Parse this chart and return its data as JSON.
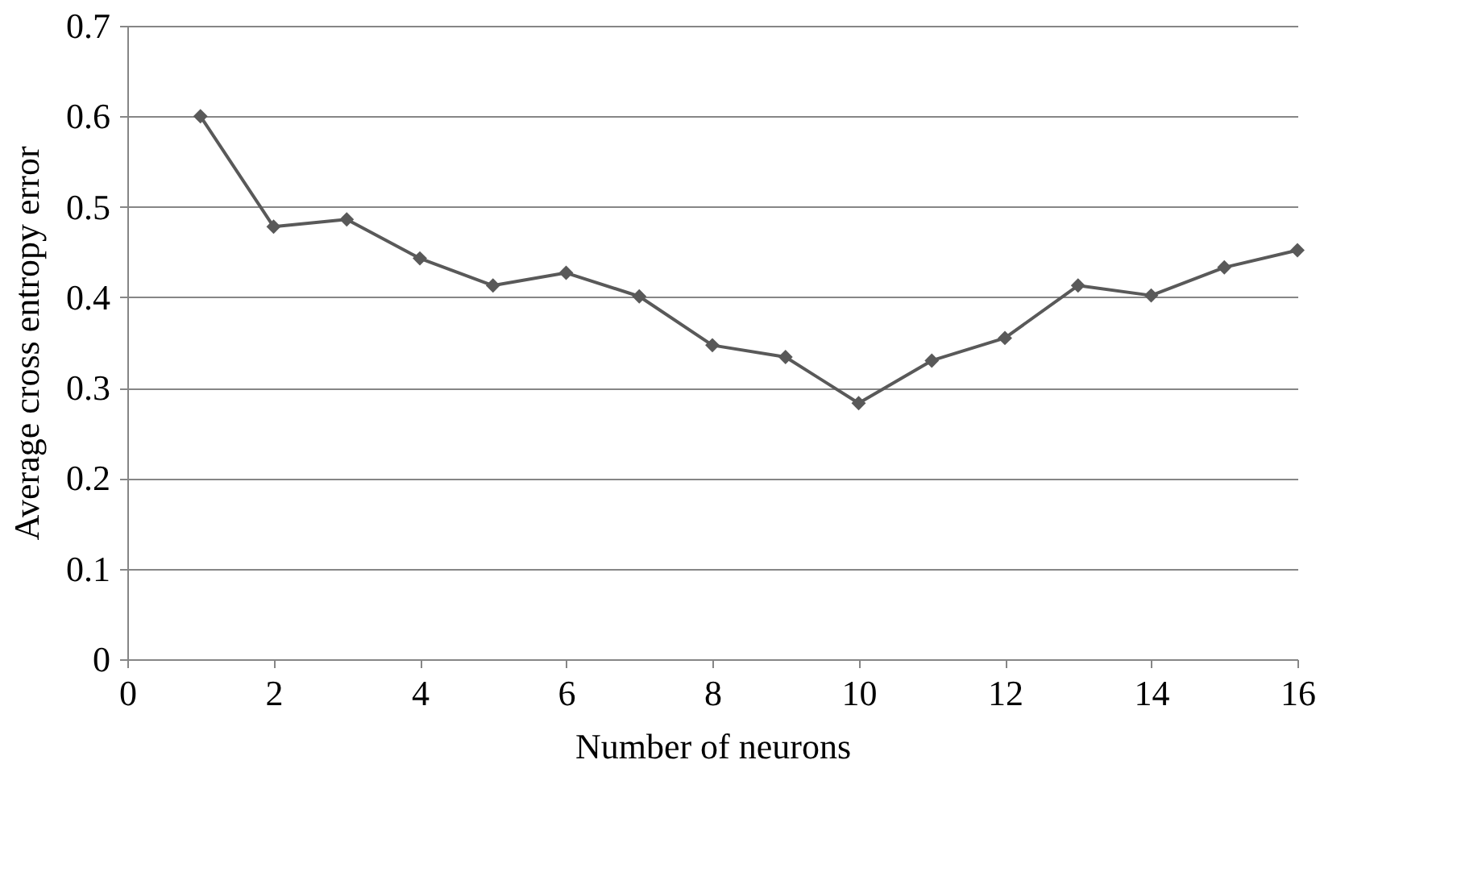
{
  "chart_data": {
    "type": "line",
    "xlabel": "Number of neurons",
    "ylabel": "Average cross entropy error",
    "x": [
      1,
      2,
      3,
      4,
      5,
      6,
      7,
      8,
      9,
      10,
      11,
      12,
      13,
      14,
      15,
      16
    ],
    "series": [
      {
        "color": "#595959",
        "values": [
          0.6,
          0.478,
          0.486,
          0.443,
          0.413,
          0.427,
          0.401,
          0.347,
          0.334,
          0.283,
          0.33,
          0.355,
          0.413,
          0.402,
          0.433,
          0.452
        ]
      }
    ],
    "xlim": [
      0,
      16
    ],
    "xticks": [
      0,
      2,
      4,
      6,
      8,
      10,
      12,
      14,
      16
    ],
    "ylim": [
      0,
      0.7
    ],
    "yticks": [
      0,
      0.1,
      0.2,
      0.3,
      0.4,
      0.5,
      0.6,
      0.7
    ],
    "grid": "y",
    "marker": "diamond",
    "line_style": "solid"
  }
}
